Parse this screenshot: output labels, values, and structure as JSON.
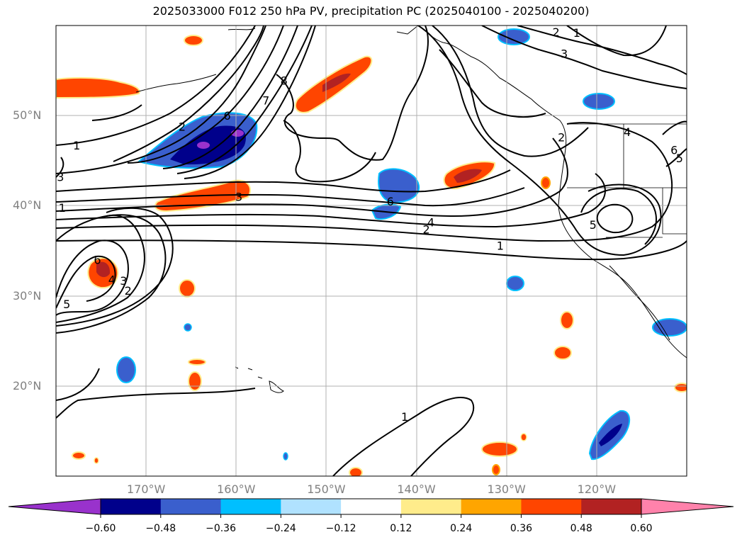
{
  "title": "2025033000 F012 250 hPa PV, precipitation PC (2025040100 - 2025040200)",
  "map": {
    "lon_range": [
      -180,
      -110
    ],
    "lat_range": [
      10,
      60
    ],
    "lat_labels": [
      {
        "lat": 50,
        "label": "50°N"
      },
      {
        "lat": 40,
        "label": "40°N"
      },
      {
        "lat": 30,
        "label": "30°N"
      },
      {
        "lat": 20,
        "label": "20°N"
      }
    ],
    "lon_labels": [
      {
        "lon": -170,
        "label": "170°W"
      },
      {
        "lon": -160,
        "label": "160°W"
      },
      {
        "lon": -150,
        "label": "150°W"
      },
      {
        "lon": -140,
        "label": "140°W"
      },
      {
        "lon": -130,
        "label": "130°W"
      },
      {
        "lon": -120,
        "label": "120°W"
      }
    ],
    "contour_labels": [
      {
        "text": "1",
        "lon": -177.7,
        "lat": 46.7
      },
      {
        "text": "1",
        "lon": -179.3,
        "lat": 39.8
      },
      {
        "text": "3",
        "lon": -179.5,
        "lat": 43.2
      },
      {
        "text": "2",
        "lon": -166,
        "lat": 48.8
      },
      {
        "text": "6",
        "lon": -161,
        "lat": 50.0
      },
      {
        "text": "7",
        "lon": -156.7,
        "lat": 51.7
      },
      {
        "text": "8",
        "lon": -154.7,
        "lat": 53.9
      },
      {
        "text": "3",
        "lon": -159.7,
        "lat": 41.0
      },
      {
        "text": "6",
        "lon": -142.9,
        "lat": 40.5
      },
      {
        "text": "4",
        "lon": -138.4,
        "lat": 38.2
      },
      {
        "text": "2",
        "lon": -138.9,
        "lat": 37.4
      },
      {
        "text": "1",
        "lon": -130.7,
        "lat": 35.6
      },
      {
        "text": "6",
        "lon": -175.4,
        "lat": 34.0
      },
      {
        "text": "4",
        "lon": -173.8,
        "lat": 31.8
      },
      {
        "text": "3",
        "lon": -172.5,
        "lat": 31.7
      },
      {
        "text": "2",
        "lon": -172.0,
        "lat": 30.6
      },
      {
        "text": "5",
        "lon": -178.8,
        "lat": 29.1
      },
      {
        "text": "1",
        "lon": -141.3,
        "lat": 16.6
      },
      {
        "text": "2",
        "lon": -124.5,
        "lat": 59.3
      },
      {
        "text": "1",
        "lon": -122.2,
        "lat": 59.2
      },
      {
        "text": "3",
        "lon": -123.6,
        "lat": 56.9
      },
      {
        "text": "2",
        "lon": -123.9,
        "lat": 47.6
      },
      {
        "text": "4",
        "lon": -116.6,
        "lat": 48.2
      },
      {
        "text": "5",
        "lon": -120.4,
        "lat": 37.9
      },
      {
        "text": "6",
        "lon": -111.4,
        "lat": 46.2
      },
      {
        "text": "5",
        "lon": -110.8,
        "lat": 45.3
      }
    ]
  },
  "colorbar": {
    "levels": [
      "−0.60",
      "−0.48",
      "−0.36",
      "−0.24",
      "−0.12",
      "0.12",
      "0.24",
      "0.36",
      "0.48",
      "0.60"
    ],
    "colors": [
      "#9932CC",
      "#00008B",
      "#3A5FCD",
      "#00BFFF",
      "#B0E2FF",
      "#FFFFFF",
      "#FFEC8B",
      "#FFA500",
      "#FF4500",
      "#B22222",
      "#FF82AB"
    ]
  }
}
